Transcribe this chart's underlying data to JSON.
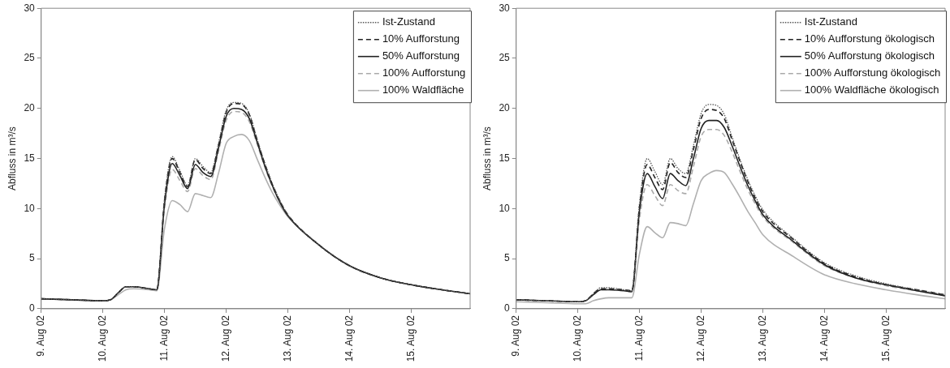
{
  "chart_data": [
    {
      "type": "line",
      "ylabel": "Abfluss in m³/s",
      "ylim": [
        0,
        30
      ],
      "yticks": [
        0,
        5,
        10,
        15,
        20,
        25,
        30
      ],
      "xlim": [
        "--08-09",
        "--08-15T23:00"
      ],
      "xticks": [
        {
          "value": "--08-09",
          "label": "9. Aug 02"
        },
        {
          "value": "--08-10",
          "label": "10. Aug 02"
        },
        {
          "value": "--08-11",
          "label": "11. Aug 02"
        },
        {
          "value": "--08-12",
          "label": "12. Aug 02"
        },
        {
          "value": "--08-13",
          "label": "13. Aug 02"
        },
        {
          "value": "--08-14",
          "label": "14. Aug 02"
        },
        {
          "value": "--08-15",
          "label": "15. Aug 02"
        }
      ],
      "x": [
        "--08-09T00:00",
        "--08-09T12:00",
        "--08-10T00:00",
        "--08-10T03:00",
        "--08-10T06:00",
        "--08-10T09:00",
        "--08-10T12:00",
        "--08-10T18:00",
        "--08-10T21:00",
        "--08-11T00:00",
        "--08-11T03:00",
        "--08-11T06:00",
        "--08-11T09:00",
        "--08-11T12:00",
        "--08-11T15:00",
        "--08-11T18:00",
        "--08-11T21:00",
        "--08-12T00:00",
        "--08-12T03:00",
        "--08-12T06:00",
        "--08-12T09:00",
        "--08-12T12:00",
        "--08-12T15:00",
        "--08-12T18:00",
        "--08-12T21:00",
        "--08-13T00:00",
        "--08-13T12:00",
        "--08-14T00:00",
        "--08-14T12:00",
        "--08-15T00:00",
        "--08-15T12:00",
        "--08-15T23:00"
      ],
      "legend": "top right",
      "grid": false,
      "marker": "none",
      "series": [
        {
          "name": "Ist-Zustand",
          "color": "#555555",
          "line_style": "dotted",
          "values": [
            1.0,
            0.9,
            0.8,
            0.9,
            1.6,
            2.2,
            2.2,
            2.0,
            1.9,
            11.0,
            15.2,
            13.8,
            12.3,
            15.0,
            14.2,
            13.6,
            16.5,
            19.8,
            20.6,
            20.5,
            19.5,
            17.0,
            14.6,
            12.5,
            10.8,
            9.4,
            6.4,
            4.3,
            3.1,
            2.4,
            1.9,
            1.5
          ]
        },
        {
          "name": "10% Aufforstung",
          "color": "#222222",
          "line_style": "dashed",
          "values": [
            1.0,
            0.9,
            0.8,
            0.9,
            1.6,
            2.2,
            2.2,
            2.0,
            1.9,
            10.8,
            15.0,
            13.6,
            12.2,
            14.9,
            14.0,
            13.5,
            16.3,
            19.6,
            20.5,
            20.4,
            19.4,
            16.9,
            14.5,
            12.4,
            10.7,
            9.4,
            6.4,
            4.3,
            3.1,
            2.4,
            1.9,
            1.5
          ]
        },
        {
          "name": "50% Aufforstung",
          "color": "#222222",
          "line_style": "solid",
          "values": [
            1.0,
            0.9,
            0.8,
            0.9,
            1.6,
            2.2,
            2.2,
            2.0,
            1.9,
            10.4,
            14.5,
            13.3,
            12.0,
            14.4,
            13.6,
            13.2,
            16.0,
            19.2,
            20.0,
            19.9,
            19.0,
            16.7,
            14.3,
            12.3,
            10.6,
            9.3,
            6.4,
            4.3,
            3.1,
            2.4,
            1.9,
            1.5
          ]
        },
        {
          "name": "100% Aufforstung",
          "color": "#aaaaaa",
          "line_style": "dashed",
          "values": [
            1.0,
            0.9,
            0.8,
            0.9,
            1.6,
            2.2,
            2.2,
            2.0,
            1.9,
            10.0,
            13.9,
            12.8,
            11.7,
            14.0,
            13.3,
            12.9,
            15.7,
            18.8,
            19.7,
            19.6,
            18.7,
            16.5,
            14.2,
            12.2,
            10.6,
            9.3,
            6.4,
            4.3,
            3.1,
            2.4,
            1.9,
            1.5
          ]
        },
        {
          "name": "100% Waldfläche",
          "color": "#b0b0b0",
          "line_style": "solid",
          "values": [
            1.0,
            0.9,
            0.8,
            0.9,
            1.4,
            1.9,
            2.0,
            1.9,
            1.8,
            8.0,
            10.8,
            10.4,
            9.7,
            11.5,
            11.3,
            11.1,
            13.5,
            16.5,
            17.2,
            17.4,
            16.8,
            15.0,
            13.2,
            11.6,
            10.3,
            9.2,
            6.4,
            4.3,
            3.1,
            2.4,
            1.9,
            1.5
          ]
        }
      ]
    },
    {
      "type": "line",
      "ylabel": "Abfluss in m³/s",
      "ylim": [
        0,
        30
      ],
      "yticks": [
        0,
        5,
        10,
        15,
        20,
        25,
        30
      ],
      "xlim": [
        "--08-09",
        "--08-15T23:00"
      ],
      "xticks": [
        {
          "value": "--08-09",
          "label": "9. Aug 02"
        },
        {
          "value": "--08-10",
          "label": "10. Aug 02"
        },
        {
          "value": "--08-11",
          "label": "11. Aug 02"
        },
        {
          "value": "--08-12",
          "label": "12. Aug 02"
        },
        {
          "value": "--08-13",
          "label": "13. Aug 02"
        },
        {
          "value": "--08-14",
          "label": "14. Aug 02"
        },
        {
          "value": "--08-15",
          "label": "15. Aug 02"
        }
      ],
      "x": [
        "--08-09T00:00",
        "--08-09T12:00",
        "--08-10T00:00",
        "--08-10T03:00",
        "--08-10T06:00",
        "--08-10T09:00",
        "--08-10T12:00",
        "--08-10T18:00",
        "--08-10T21:00",
        "--08-11T00:00",
        "--08-11T03:00",
        "--08-11T06:00",
        "--08-11T09:00",
        "--08-11T12:00",
        "--08-11T15:00",
        "--08-11T18:00",
        "--08-11T21:00",
        "--08-12T00:00",
        "--08-12T03:00",
        "--08-12T06:00",
        "--08-12T09:00",
        "--08-12T12:00",
        "--08-12T15:00",
        "--08-12T18:00",
        "--08-12T21:00",
        "--08-13T00:00",
        "--08-13T12:00",
        "--08-14T00:00",
        "--08-14T12:00",
        "--08-15T00:00",
        "--08-15T12:00",
        "--08-15T23:00"
      ],
      "legend": "top right",
      "grid": false,
      "marker": "none",
      "series": [
        {
          "name": "Ist-Zustand",
          "color": "#555555",
          "line_style": "dotted",
          "values": [
            0.9,
            0.8,
            0.7,
            0.8,
            1.5,
            2.1,
            2.1,
            1.9,
            1.8,
            10.5,
            15.0,
            13.7,
            12.4,
            15.0,
            14.0,
            13.5,
            16.3,
            19.5,
            20.4,
            20.3,
            19.4,
            17.2,
            15.0,
            13.0,
            11.3,
            9.9,
            7.0,
            4.6,
            3.3,
            2.5,
            1.9,
            1.4
          ]
        },
        {
          "name": "10% Aufforstung ökologisch",
          "color": "#222222",
          "line_style": "dashed",
          "values": [
            0.9,
            0.8,
            0.7,
            0.8,
            1.5,
            2.0,
            2.0,
            1.9,
            1.8,
            10.2,
            14.4,
            13.1,
            11.9,
            14.6,
            13.6,
            13.1,
            15.9,
            19.0,
            19.9,
            19.8,
            19.0,
            16.9,
            14.8,
            12.8,
            11.1,
            9.7,
            6.9,
            4.5,
            3.2,
            2.4,
            1.9,
            1.4
          ]
        },
        {
          "name": "50% Aufforstung ökologisch",
          "color": "#222222",
          "line_style": "solid",
          "values": [
            0.9,
            0.8,
            0.7,
            0.8,
            1.4,
            1.9,
            1.9,
            1.8,
            1.7,
            9.8,
            13.5,
            12.2,
            11.0,
            13.5,
            12.8,
            12.3,
            15.0,
            18.0,
            18.8,
            18.8,
            18.1,
            16.3,
            14.3,
            12.4,
            10.8,
            9.4,
            6.7,
            4.4,
            3.1,
            2.4,
            1.8,
            1.3
          ]
        },
        {
          "name": "100% Aufforstung ökologisch",
          "color": "#aaaaaa",
          "line_style": "dashed",
          "values": [
            0.9,
            0.8,
            0.7,
            0.8,
            1.4,
            1.9,
            1.9,
            1.8,
            1.7,
            9.0,
            12.4,
            11.3,
            10.3,
            12.4,
            11.8,
            11.5,
            14.2,
            17.2,
            17.9,
            17.9,
            17.3,
            15.7,
            13.8,
            12.0,
            10.5,
            9.2,
            6.6,
            4.3,
            3.1,
            2.3,
            1.8,
            1.3
          ]
        },
        {
          "name": "100% Waldfläche ökologisch",
          "color": "#b0b0b0",
          "line_style": "solid",
          "values": [
            0.7,
            0.6,
            0.5,
            0.5,
            0.8,
            1.0,
            1.1,
            1.1,
            1.1,
            5.5,
            8.2,
            7.6,
            7.1,
            8.6,
            8.5,
            8.3,
            10.5,
            12.8,
            13.5,
            13.8,
            13.6,
            12.5,
            11.2,
            9.8,
            8.6,
            7.4,
            5.2,
            3.4,
            2.5,
            1.9,
            1.4,
            1.0
          ]
        }
      ]
    }
  ]
}
